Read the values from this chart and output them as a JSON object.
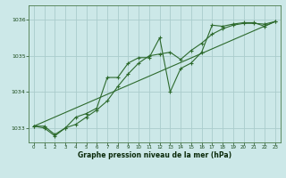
{
  "xlabel": "Graphe pression niveau de la mer (hPa)",
  "background_color": "#cce8e8",
  "grid_color": "#aacccc",
  "line_color": "#2d6a2d",
  "xlim": [
    -0.5,
    23.5
  ],
  "ylim": [
    1032.6,
    1036.4
  ],
  "yticks": [
    1033,
    1034,
    1035,
    1036
  ],
  "xticks": [
    0,
    1,
    2,
    3,
    4,
    5,
    6,
    7,
    8,
    9,
    10,
    11,
    12,
    13,
    14,
    15,
    16,
    17,
    18,
    19,
    20,
    21,
    22,
    23
  ],
  "series_straight": {
    "x": [
      0,
      23
    ],
    "y": [
      1033.05,
      1035.95
    ]
  },
  "series_smooth": {
    "x": [
      0,
      1,
      2,
      3,
      4,
      5,
      6,
      7,
      8,
      9,
      10,
      11,
      12,
      13,
      14,
      15,
      16,
      17,
      18,
      19,
      20,
      21,
      22,
      23
    ],
    "y": [
      1033.05,
      1033.05,
      1032.82,
      1033.0,
      1033.1,
      1033.3,
      1033.5,
      1033.75,
      1034.15,
      1034.5,
      1034.8,
      1035.0,
      1035.05,
      1035.1,
      1034.9,
      1035.15,
      1035.35,
      1035.6,
      1035.75,
      1035.85,
      1035.9,
      1035.9,
      1035.88,
      1035.95
    ]
  },
  "series_jagged": {
    "x": [
      0,
      1,
      2,
      3,
      4,
      5,
      6,
      7,
      8,
      9,
      10,
      11,
      12,
      13,
      14,
      15,
      16,
      17,
      18,
      19,
      20,
      21,
      22,
      23
    ],
    "y": [
      1033.05,
      1033.0,
      1032.78,
      1033.0,
      1033.3,
      1033.4,
      1033.55,
      1034.4,
      1034.4,
      1034.8,
      1034.95,
      1034.95,
      1035.5,
      1034.0,
      1034.65,
      1034.8,
      1035.1,
      1035.85,
      1035.82,
      1035.88,
      1035.92,
      1035.92,
      1035.82,
      1035.95
    ]
  }
}
